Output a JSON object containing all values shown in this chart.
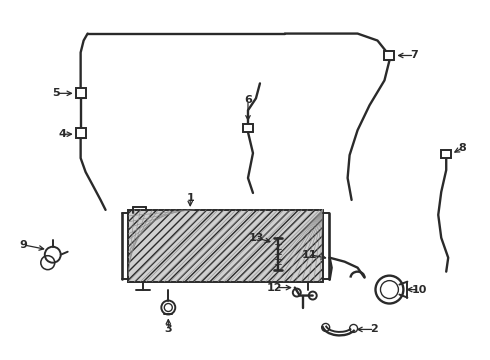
{
  "bg_color": "#ffffff",
  "line_color": "#2a2a2a",
  "lw": 1.4,
  "fig_w": 4.9,
  "fig_h": 3.6,
  "dpi": 100
}
